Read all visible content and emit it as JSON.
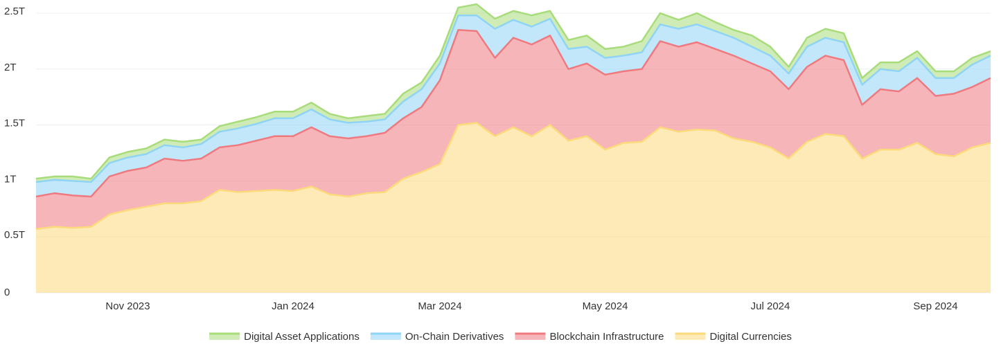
{
  "chart_data": {
    "type": "area",
    "stacked": true,
    "categories": [
      null,
      null,
      null,
      null,
      null,
      "Nov 2023",
      null,
      null,
      null,
      null,
      null,
      null,
      null,
      null,
      "Jan 2024",
      null,
      null,
      null,
      null,
      null,
      null,
      null,
      "Mar 2024",
      null,
      null,
      null,
      null,
      null,
      null,
      null,
      null,
      "May 2024",
      null,
      null,
      null,
      null,
      null,
      null,
      null,
      null,
      "Jul 2024",
      null,
      null,
      null,
      null,
      null,
      null,
      null,
      null,
      "Sep 2024",
      null,
      null,
      null
    ],
    "series": [
      {
        "name": "Digital Asset Applications",
        "color": "#a8dc7a",
        "values": [
          0.03,
          0.03,
          0.04,
          0.03,
          0.05,
          0.05,
          0.05,
          0.05,
          0.05,
          0.04,
          0.05,
          0.06,
          0.06,
          0.06,
          0.06,
          0.06,
          0.05,
          0.04,
          0.05,
          0.05,
          0.07,
          0.06,
          0.07,
          0.07,
          0.1,
          0.09,
          0.08,
          0.1,
          0.07,
          0.08,
          0.1,
          0.08,
          0.08,
          0.1,
          0.1,
          0.08,
          0.1,
          0.08,
          0.07,
          0.1,
          0.08,
          0.06,
          0.08,
          0.08,
          0.08,
          0.06,
          0.06,
          0.08,
          0.06,
          0.06,
          0.06,
          0.06,
          0.04
        ]
      },
      {
        "name": "On-Chain Derivatives",
        "color": "#8fd3f5",
        "values": [
          0.13,
          0.12,
          0.13,
          0.13,
          0.12,
          0.12,
          0.12,
          0.12,
          0.12,
          0.13,
          0.14,
          0.15,
          0.15,
          0.16,
          0.16,
          0.16,
          0.15,
          0.14,
          0.13,
          0.12,
          0.15,
          0.16,
          0.15,
          0.13,
          0.14,
          0.26,
          0.16,
          0.16,
          0.15,
          0.18,
          0.15,
          0.15,
          0.14,
          0.15,
          0.15,
          0.16,
          0.16,
          0.16,
          0.16,
          0.15,
          0.14,
          0.14,
          0.18,
          0.16,
          0.16,
          0.18,
          0.18,
          0.18,
          0.18,
          0.16,
          0.14,
          0.2,
          0.2
        ]
      },
      {
        "name": "Blockchain Infrastructure",
        "color": "#ee7a80",
        "values": [
          0.29,
          0.3,
          0.29,
          0.27,
          0.34,
          0.35,
          0.35,
          0.4,
          0.38,
          0.38,
          0.38,
          0.42,
          0.45,
          0.48,
          0.49,
          0.53,
          0.52,
          0.52,
          0.51,
          0.53,
          0.54,
          0.58,
          0.75,
          0.85,
          0.82,
          0.7,
          0.8,
          0.82,
          0.8,
          0.64,
          0.65,
          0.67,
          0.64,
          0.65,
          0.77,
          0.76,
          0.78,
          0.73,
          0.74,
          0.7,
          0.68,
          0.62,
          0.67,
          0.7,
          0.68,
          0.48,
          0.54,
          0.52,
          0.58,
          0.52,
          0.56,
          0.54,
          0.58
        ]
      },
      {
        "name": "Digital Currencies",
        "color": "#fcd97a",
        "values": [
          0.57,
          0.59,
          0.58,
          0.59,
          0.7,
          0.74,
          0.77,
          0.8,
          0.8,
          0.82,
          0.92,
          0.9,
          0.91,
          0.92,
          0.91,
          0.95,
          0.88,
          0.86,
          0.89,
          0.9,
          1.02,
          1.08,
          1.15,
          1.5,
          1.52,
          1.4,
          1.48,
          1.4,
          1.5,
          1.36,
          1.4,
          1.28,
          1.34,
          1.35,
          1.48,
          1.44,
          1.46,
          1.45,
          1.38,
          1.35,
          1.3,
          1.2,
          1.35,
          1.42,
          1.4,
          1.2,
          1.28,
          1.28,
          1.34,
          1.24,
          1.22,
          1.3,
          1.34
        ]
      }
    ],
    "ylim": [
      0,
      2.5
    ],
    "yticks": [
      0,
      {
        "value": 0.5,
        "label": "0.5T"
      },
      {
        "value": 1,
        "label": "1T"
      },
      {
        "value": 1.5,
        "label": "1.5T"
      },
      {
        "value": 2,
        "label": "2T"
      },
      {
        "value": 2.5,
        "label": "2.5T"
      }
    ],
    "grid": true,
    "legend": "bottom"
  }
}
